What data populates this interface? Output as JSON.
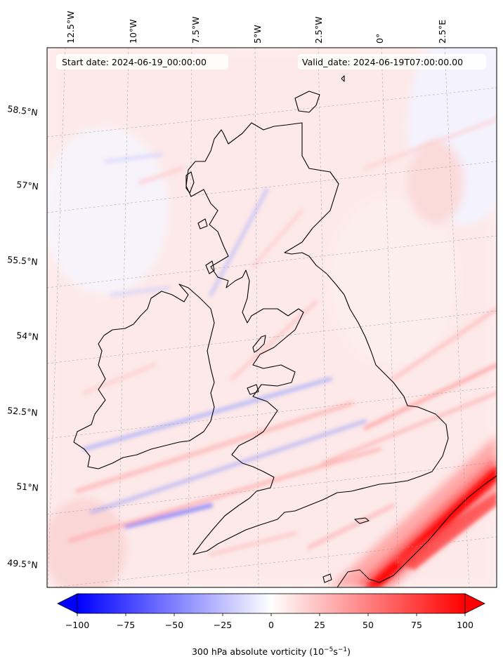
{
  "annotations": {
    "start": "Start date: 2024-06-19_00:00:00",
    "valid": "Valid_date: 2024-06-19T07:00:00.00"
  },
  "lon_labels": [
    "12.5°W",
    "10°W",
    "7.5°W",
    "5°W",
    "2.5°W",
    "0°",
    "2.5°E"
  ],
  "lat_labels": [
    "58.5°N",
    "57°N",
    "55.5°N",
    "54°N",
    "52.5°N",
    "51°N",
    "49.5°N"
  ],
  "colorbar": {
    "label_main": "300 hPa absolute vorticity (10",
    "label_exp1": "−5",
    "label_mid": "s",
    "label_exp2": "−1",
    "label_end": ")",
    "ticks": [
      "−100",
      "−75",
      "−50",
      "−25",
      "0",
      "25",
      "50",
      "75",
      "100"
    ],
    "min": -100,
    "max": 100,
    "extend": "both",
    "cmap": "bwr",
    "colors": {
      "low": "#0000ff",
      "mid": "#ffffff",
      "high": "#ff0000"
    }
  },
  "map": {
    "field": "300 hPa absolute vorticity",
    "extent_lon": [
      -13.5,
      4.0
    ],
    "extent_lat": [
      49.0,
      59.5
    ],
    "gridlines": true,
    "coastline_color": "#000000"
  }
}
